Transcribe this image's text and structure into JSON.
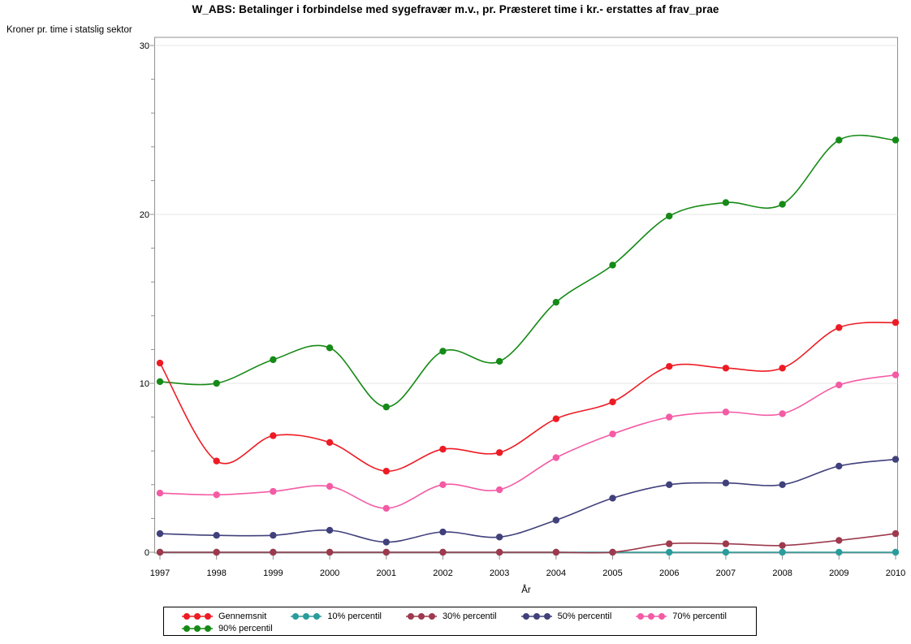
{
  "chart_data": {
    "type": "line",
    "title": "W_ABS: Betalinger i forbindelse med sygefravær m.v., pr. Præsteret time i kr.- erstattes af frav_prae",
    "ylabel": "Kroner pr. time i statslig sektor",
    "xlabel": "År",
    "categories": [
      "1997",
      "1998",
      "1999",
      "2000",
      "2001",
      "2002",
      "2003",
      "2004",
      "2005",
      "2006",
      "2007",
      "2008",
      "2009",
      "2010"
    ],
    "ylim": [
      0,
      30
    ],
    "yticks_major": [
      0,
      10,
      20,
      30
    ],
    "ytick_minor_step": 2,
    "grid": true,
    "interpolation": "smooth-spline",
    "legend_position": "bottom",
    "legend_rows": [
      [
        0,
        1,
        2,
        3,
        4
      ],
      [
        5
      ]
    ],
    "series": [
      {
        "name": "Gennemsnit",
        "color": "#ed1c24",
        "values": [
          11.2,
          5.4,
          6.9,
          6.5,
          4.8,
          6.1,
          5.9,
          7.9,
          8.9,
          11.0,
          10.9,
          10.9,
          13.3,
          13.6
        ]
      },
      {
        "name": "10% percentil",
        "color": "#2b9c9c",
        "values": [
          0,
          0,
          0,
          0,
          0,
          0,
          0,
          0,
          0,
          0,
          0,
          0,
          0,
          0
        ]
      },
      {
        "name": "30% percentil",
        "color": "#9d3a4d",
        "values": [
          0,
          0,
          0,
          0,
          0,
          0,
          0,
          0,
          0,
          0.5,
          0.5,
          0.4,
          0.7,
          1.1
        ]
      },
      {
        "name": "50% percentil",
        "color": "#40407c",
        "values": [
          1.1,
          1.0,
          1.0,
          1.3,
          0.6,
          1.2,
          0.9,
          1.9,
          3.2,
          4.0,
          4.1,
          4.0,
          5.1,
          5.5
        ]
      },
      {
        "name": "70% percentil",
        "color": "#f45ba5",
        "values": [
          3.5,
          3.4,
          3.6,
          3.9,
          2.6,
          4.0,
          3.7,
          5.6,
          7.0,
          8.0,
          8.3,
          8.2,
          9.9,
          10.5
        ]
      },
      {
        "name": "90% percentil",
        "color": "#168a16",
        "values": [
          10.1,
          10.0,
          11.4,
          12.1,
          8.6,
          11.9,
          11.3,
          14.8,
          17.0,
          19.9,
          20.7,
          20.6,
          24.4,
          24.4
        ]
      }
    ],
    "draw_order": [
      1,
      2,
      3,
      4,
      5,
      0
    ]
  },
  "colors": {
    "background": "#ffffff",
    "axis": "#909090",
    "grid": "#e4e4e4",
    "text": "#000000",
    "legend_border": "#000000"
  }
}
